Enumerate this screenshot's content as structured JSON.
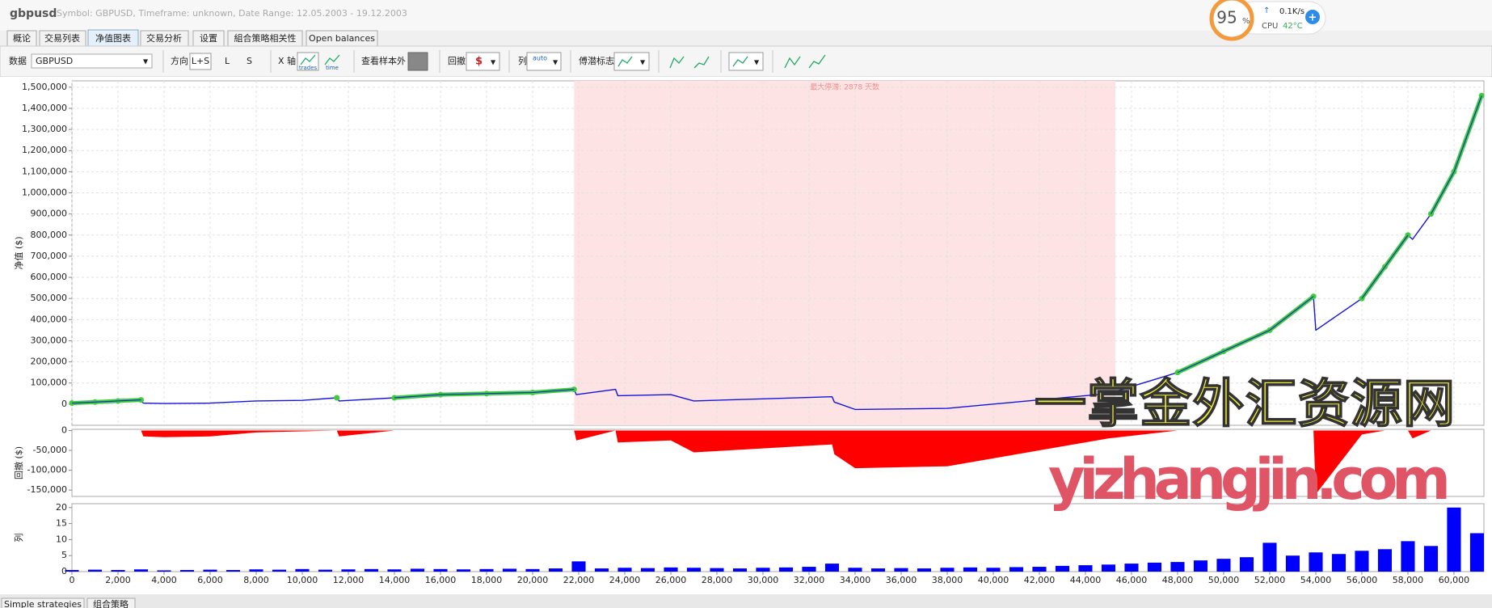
{
  "header": {
    "title": "gbpusd",
    "info": "Symbol: GBPUSD, Timeframe: unknown, Date Range: 12.05.2003 - 19.12.2003"
  },
  "system_widget": {
    "percent": "95",
    "percent_unit": "%",
    "net_speed": "0.1K/s",
    "cpu_label": "CPU",
    "cpu_temp": "42°C"
  },
  "tabs": [
    "概论",
    "交易列表",
    "净值图表",
    "交易分析",
    "设置",
    "組合策略相关性",
    "Open balances"
  ],
  "toolbar": {
    "data_label": "数据",
    "data_value": "GBPUSD",
    "direction_label": "方向",
    "direction_options": [
      "L+S",
      "L",
      "S"
    ],
    "xaxis_label": "X 轴",
    "xaxis_options": [
      "trades",
      "time"
    ],
    "out_of_sample": "查看样本外",
    "drawdown_label": "回撤",
    "columns_label": "列",
    "columns_option": "auto",
    "slippage_label": "傅潜标志"
  },
  "watermark": {
    "cn": "一掌金外汇资源网",
    "url": "yizhangjin.com"
  },
  "bottom_tabs": [
    "Simple strategies",
    "组合策略"
  ],
  "chart_data": [
    {
      "type": "line",
      "y_label": "净值 ($)",
      "annotation": "最大停滞: 2878 天数",
      "stagnation": [
        21800,
        45300
      ],
      "grid": true,
      "xlim": [
        0,
        61300
      ],
      "ylim": [
        -100000,
        1530000
      ],
      "yticks": [
        0,
        {
          "value": 100000,
          "label": "100,000"
        },
        {
          "value": 200000,
          "label": "200,000"
        },
        {
          "value": 300000,
          "label": "300,000"
        },
        {
          "value": 400000,
          "label": "400,000"
        },
        {
          "value": 500000,
          "label": "500,000"
        },
        {
          "value": 600000,
          "label": "600,000"
        },
        {
          "value": 700000,
          "label": "700,000"
        },
        {
          "value": 800000,
          "label": "800,000"
        },
        {
          "value": 900000,
          "label": "900,000"
        },
        {
          "value": 1000000,
          "label": "1,000,000"
        },
        {
          "value": 1100000,
          "label": "1,100,000"
        },
        {
          "value": 1200000,
          "label": "1,200,000"
        },
        {
          "value": 1300000,
          "label": "1,300,000"
        },
        {
          "value": 1400000,
          "label": "1,400,000"
        },
        {
          "value": 1500000,
          "label": "1,500,000"
        }
      ],
      "x": [
        0,
        1000,
        2000,
        3000,
        3100,
        4000,
        6000,
        8000,
        10000,
        11500,
        11600,
        14000,
        16000,
        18000,
        20000,
        21800,
        21900,
        23600,
        23700,
        26000,
        27000,
        30000,
        33000,
        33100,
        34000,
        38000,
        42000,
        45000,
        48000,
        50000,
        52000,
        53900,
        54000,
        56000,
        57000,
        58000,
        58200,
        59000,
        60000,
        61200
      ],
      "series": [
        {
          "color": "#1414dc",
          "values": [
            5000,
            10000,
            15000,
            20000,
            5000,
            3000,
            5000,
            15000,
            18000,
            30000,
            15000,
            30000,
            45000,
            50000,
            55000,
            70000,
            45000,
            70000,
            40000,
            45000,
            15000,
            25000,
            35000,
            10000,
            -25000,
            -20000,
            20000,
            50000,
            150000,
            250000,
            350000,
            510000,
            350000,
            500000,
            650000,
            800000,
            780000,
            900000,
            1100000,
            1460000
          ]
        },
        {
          "color": "#3ccc3c",
          "markers": true,
          "values": [
            5000,
            10000,
            15000,
            20000,
            null,
            null,
            null,
            null,
            null,
            30000,
            null,
            30000,
            45000,
            50000,
            55000,
            70000,
            null,
            null,
            null,
            null,
            null,
            null,
            null,
            null,
            null,
            null,
            null,
            null,
            150000,
            250000,
            350000,
            510000,
            null,
            500000,
            650000,
            800000,
            null,
            900000,
            1100000,
            1460000
          ]
        }
      ]
    },
    {
      "type": "area",
      "y_label": "回撤 ($)",
      "color": "#ff0000",
      "xlim": [
        0,
        61300
      ],
      "ylim": [
        -166000,
        3000
      ],
      "yticks": [
        0,
        {
          "value": -50000,
          "label": "-50,000"
        },
        {
          "value": -100000,
          "label": "-100,000"
        },
        {
          "value": -150000,
          "label": "-150,000"
        }
      ],
      "x": [
        0,
        1000,
        2000,
        3000,
        3100,
        4000,
        6000,
        8000,
        10000,
        11500,
        11600,
        14000,
        16000,
        18000,
        20000,
        21800,
        21900,
        23600,
        23700,
        26000,
        27000,
        30000,
        33000,
        33100,
        34000,
        38000,
        42000,
        45000,
        48000,
        50000,
        52000,
        53900,
        54000,
        56000,
        57000,
        58000,
        58200,
        59000,
        60000,
        61200
      ],
      "values": [
        0,
        0,
        0,
        0,
        -15000,
        -17000,
        -15000,
        -5000,
        -2000,
        0,
        -15000,
        0,
        0,
        0,
        0,
        0,
        -25000,
        0,
        -30000,
        -25000,
        -55000,
        -45000,
        -35000,
        -60000,
        -95000,
        -90000,
        -50000,
        -20000,
        0,
        0,
        0,
        0,
        -160000,
        -10000,
        0,
        0,
        -20000,
        0,
        0,
        0
      ]
    },
    {
      "type": "bar",
      "y_label": "列",
      "color": "#0000ff",
      "xlim": [
        0,
        61300
      ],
      "ylim": [
        0,
        21.2
      ],
      "yticks": [
        0,
        5,
        10,
        15,
        20
      ],
      "xticks": [
        0,
        {
          "value": 2000,
          "label": "2,000"
        },
        {
          "value": 4000,
          "label": "4,000"
        },
        {
          "value": 6000,
          "label": "6,000"
        },
        {
          "value": 8000,
          "label": "8,000"
        },
        {
          "value": 10000,
          "label": "10,000"
        },
        {
          "value": 12000,
          "label": "12,000"
        },
        {
          "value": 14000,
          "label": "14,000"
        },
        {
          "value": 16000,
          "label": "16,000"
        },
        {
          "value": 18000,
          "label": "18,000"
        },
        {
          "value": 20000,
          "label": "20,000"
        },
        {
          "value": 22000,
          "label": "22,000"
        },
        {
          "value": 24000,
          "label": "24,000"
        },
        {
          "value": 26000,
          "label": "26,000"
        },
        {
          "value": 28000,
          "label": "28,000"
        },
        {
          "value": 30000,
          "label": "30,000"
        },
        {
          "value": 32000,
          "label": "32,000"
        },
        {
          "value": 34000,
          "label": "34,000"
        },
        {
          "value": 36000,
          "label": "36,000"
        },
        {
          "value": 38000,
          "label": "38,000"
        },
        {
          "value": 40000,
          "label": "40,000"
        },
        {
          "value": 42000,
          "label": "42,000"
        },
        {
          "value": 44000,
          "label": "44,000"
        },
        {
          "value": 46000,
          "label": "46,000"
        },
        {
          "value": 48000,
          "label": "48,000"
        },
        {
          "value": 50000,
          "label": "50,000"
        },
        {
          "value": 52000,
          "label": "52,000"
        },
        {
          "value": 54000,
          "label": "54,000"
        },
        {
          "value": 56000,
          "label": "56,000"
        },
        {
          "value": 58000,
          "label": "58,000"
        },
        {
          "value": 60000,
          "label": "60,000"
        }
      ],
      "x": [
        0,
        1000,
        2000,
        3000,
        4000,
        5000,
        6000,
        7000,
        8000,
        9000,
        10000,
        11000,
        12000,
        13000,
        14000,
        15000,
        16000,
        17000,
        18000,
        19000,
        20000,
        21000,
        22000,
        23000,
        24000,
        25000,
        26000,
        27000,
        28000,
        29000,
        30000,
        31000,
        32000,
        33000,
        34000,
        35000,
        36000,
        37000,
        38000,
        39000,
        40000,
        41000,
        42000,
        43000,
        44000,
        45000,
        46000,
        47000,
        48000,
        49000,
        50000,
        51000,
        52000,
        53000,
        54000,
        55000,
        56000,
        57000,
        58000,
        59000,
        60000,
        61000
      ],
      "values": [
        0.5,
        0.6,
        0.5,
        0.7,
        0.4,
        0.5,
        0.6,
        0.5,
        0.7,
        0.6,
        0.8,
        0.6,
        0.7,
        0.8,
        0.7,
        0.9,
        0.8,
        0.7,
        0.8,
        0.9,
        0.8,
        1.0,
        3.2,
        1.0,
        1.2,
        1.1,
        1.3,
        1.2,
        1.1,
        1.0,
        1.2,
        1.3,
        1.5,
        2.5,
        1.2,
        1.0,
        1.1,
        1.0,
        1.2,
        1.3,
        1.2,
        1.4,
        1.5,
        1.8,
        2.0,
        2.2,
        2.5,
        2.8,
        3.0,
        3.5,
        4.0,
        4.5,
        9,
        5.0,
        6.0,
        5.5,
        6.5,
        7.0,
        9.5,
        8.0,
        20,
        12
      ]
    }
  ]
}
